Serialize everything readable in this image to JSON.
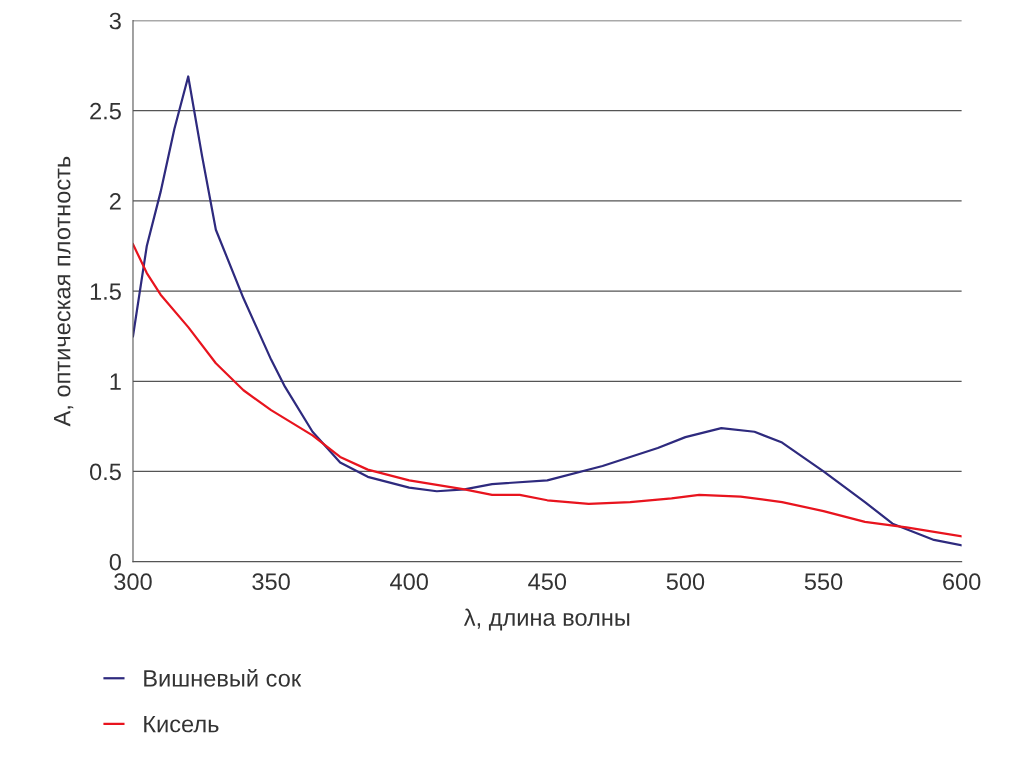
{
  "chart_data": {
    "type": "line",
    "xlabel": "λ, длина волны",
    "ylabel": "А, оптическая плотность",
    "xlim": [
      300,
      600
    ],
    "xticks": [
      300,
      350,
      400,
      450,
      500,
      550,
      600
    ],
    "ylim": [
      0,
      3
    ],
    "yticks": [
      0,
      0.5,
      1,
      1.5,
      2,
      2.5,
      3
    ],
    "grid": "y",
    "legend": "bottom",
    "marker": "none",
    "line_style": "solid",
    "series": [
      {
        "name": "Вишневый сок",
        "color": "#2e2a7e",
        "x": [
          300,
          305,
          310,
          315,
          320,
          325,
          330,
          340,
          350,
          355,
          365,
          375,
          385,
          400,
          410,
          420,
          430,
          450,
          470,
          490,
          500,
          513,
          525,
          535,
          550,
          565,
          575,
          590,
          600
        ],
        "values": [
          1.25,
          1.75,
          2.05,
          2.4,
          2.69,
          2.25,
          1.84,
          1.46,
          1.12,
          0.97,
          0.72,
          0.55,
          0.47,
          0.41,
          0.39,
          0.4,
          0.43,
          0.45,
          0.53,
          0.63,
          0.69,
          0.74,
          0.72,
          0.66,
          0.5,
          0.33,
          0.21,
          0.12,
          0.09
        ]
      },
      {
        "name": "Кисель",
        "color": "#e8141e",
        "x": [
          300,
          305,
          310,
          320,
          330,
          340,
          350,
          365,
          375,
          385,
          400,
          420,
          430,
          440,
          450,
          465,
          480,
          495,
          505,
          520,
          535,
          550,
          565,
          580,
          600
        ],
        "values": [
          1.76,
          1.6,
          1.48,
          1.3,
          1.1,
          0.95,
          0.84,
          0.7,
          0.58,
          0.51,
          0.45,
          0.4,
          0.37,
          0.37,
          0.34,
          0.32,
          0.33,
          0.35,
          0.37,
          0.36,
          0.33,
          0.28,
          0.22,
          0.19,
          0.14
        ]
      }
    ]
  }
}
